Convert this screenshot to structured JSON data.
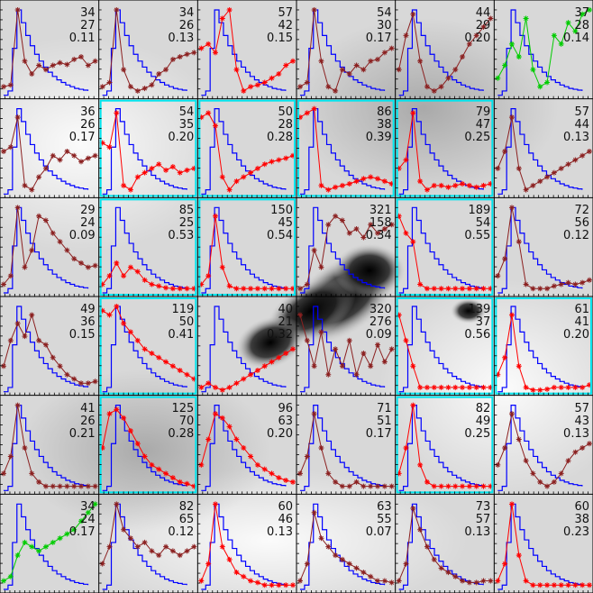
{
  "chart_data": {
    "type": "line",
    "layout": "6x6 grid of small-multiple time-intensity plots over a grayscale background image",
    "colors": {
      "reference_curve": "#0000ff",
      "series_dark": "#8b2020",
      "series_red": "#ff0000",
      "series_green": "#00cc00",
      "highlight_box": "#00e5ee",
      "grid_lines": "#000000"
    },
    "reference_curve": {
      "x": [
        0,
        1,
        2,
        3,
        4,
        5,
        6,
        7,
        8,
        9,
        10,
        11,
        12,
        13,
        14,
        15,
        16,
        17,
        18,
        19
      ],
      "y": [
        0,
        0.05,
        0.55,
        1.0,
        0.85,
        0.7,
        0.58,
        0.48,
        0.4,
        0.33,
        0.27,
        0.22,
        0.18,
        0.15,
        0.12,
        0.1,
        0.08,
        0.07,
        0.06,
        0.05
      ]
    },
    "cells": [
      {
        "row": 0,
        "col": 0,
        "values": [
          "34",
          "27",
          "0.11"
        ],
        "color": "dark",
        "highlight": false,
        "series": [
          0.1,
          0.12,
          1.0,
          0.4,
          0.25,
          0.35,
          0.3,
          0.35,
          0.38,
          0.36,
          0.42,
          0.45,
          0.35,
          0.4
        ]
      },
      {
        "row": 0,
        "col": 1,
        "values": [
          "34",
          "26",
          "0.13"
        ],
        "color": "dark",
        "highlight": false,
        "series": [
          0.1,
          0.15,
          1.0,
          0.3,
          0.1,
          0.05,
          0.08,
          0.12,
          0.25,
          0.3,
          0.42,
          0.45,
          0.48,
          0.5
        ]
      },
      {
        "row": 0,
        "col": 2,
        "values": [
          "57",
          "42",
          "0.15"
        ],
        "color": "red",
        "highlight": false,
        "series": [
          0.55,
          0.6,
          0.5,
          0.9,
          1.0,
          0.3,
          0.05,
          0.1,
          0.12,
          0.15,
          0.2,
          0.25,
          0.35,
          0.4
        ]
      },
      {
        "row": 0,
        "col": 3,
        "values": [
          "54",
          "30",
          "0.17"
        ],
        "color": "dark",
        "highlight": false,
        "series": [
          0.1,
          0.15,
          1.0,
          0.4,
          0.1,
          0.05,
          0.3,
          0.25,
          0.35,
          0.3,
          0.4,
          0.42,
          0.5,
          0.55
        ]
      },
      {
        "row": 0,
        "col": 4,
        "values": [
          "44",
          "29",
          "0.20"
        ],
        "color": "dark",
        "highlight": false,
        "series": [
          0.3,
          0.7,
          0.95,
          0.4,
          0.1,
          0.05,
          0.1,
          0.2,
          0.3,
          0.45,
          0.6,
          0.7,
          0.8,
          0.9
        ]
      },
      {
        "row": 0,
        "col": 5,
        "values": [
          "37",
          "28",
          "0.14"
        ],
        "color": "green",
        "highlight": false,
        "series": [
          0.2,
          0.35,
          0.6,
          0.45,
          0.9,
          0.3,
          0.1,
          0.15,
          0.7,
          0.6,
          0.85,
          0.75,
          0.95,
          1.0
        ]
      },
      {
        "row": 1,
        "col": 0,
        "values": [
          "36",
          "26",
          "0.17"
        ],
        "color": "dark",
        "highlight": false,
        "series": [
          0.5,
          0.55,
          0.9,
          0.1,
          0.05,
          0.2,
          0.3,
          0.45,
          0.4,
          0.5,
          0.45,
          0.38,
          0.42,
          0.45
        ]
      },
      {
        "row": 1,
        "col": 1,
        "values": [
          "54",
          "35",
          "0.20"
        ],
        "color": "red",
        "highlight": true,
        "series": [
          0.6,
          0.55,
          0.95,
          0.1,
          0.05,
          0.2,
          0.25,
          0.3,
          0.35,
          0.28,
          0.32,
          0.25,
          0.28,
          0.3
        ]
      },
      {
        "row": 1,
        "col": 2,
        "values": [
          "50",
          "28",
          "0.28"
        ],
        "color": "red",
        "highlight": true,
        "series": [
          0.9,
          0.95,
          0.8,
          0.2,
          0.05,
          0.15,
          0.2,
          0.25,
          0.3,
          0.35,
          0.38,
          0.4,
          0.42,
          0.45
        ]
      },
      {
        "row": 1,
        "col": 3,
        "values": [
          "86",
          "38",
          "0.39"
        ],
        "color": "red",
        "highlight": true,
        "series": [
          0.9,
          0.95,
          1.0,
          0.1,
          0.05,
          0.08,
          0.1,
          0.12,
          0.15,
          0.18,
          0.2,
          0.18,
          0.15,
          0.12
        ]
      },
      {
        "row": 1,
        "col": 4,
        "values": [
          "79",
          "47",
          "0.25"
        ],
        "color": "red",
        "highlight": true,
        "series": [
          0.3,
          0.4,
          0.95,
          0.15,
          0.05,
          0.1,
          0.1,
          0.08,
          0.1,
          0.12,
          0.1,
          0.08,
          0.1,
          0.12
        ]
      },
      {
        "row": 1,
        "col": 5,
        "values": [
          "57",
          "44",
          "0.13"
        ],
        "color": "dark",
        "highlight": false,
        "series": [
          0.3,
          0.5,
          0.9,
          0.3,
          0.05,
          0.1,
          0.15,
          0.2,
          0.25,
          0.3,
          0.35,
          0.4,
          0.45,
          0.5
        ]
      },
      {
        "row": 2,
        "col": 0,
        "values": [
          "29",
          "24",
          "0.09"
        ],
        "color": "dark",
        "highlight": false,
        "series": [
          0.1,
          0.2,
          1.0,
          0.3,
          0.5,
          0.9,
          0.85,
          0.7,
          0.6,
          0.5,
          0.4,
          0.35,
          0.3,
          0.32
        ]
      },
      {
        "row": 2,
        "col": 1,
        "values": [
          "85",
          "25",
          "0.53"
        ],
        "color": "red",
        "highlight": true,
        "series": [
          0.1,
          0.2,
          0.35,
          0.2,
          0.3,
          0.25,
          0.15,
          0.1,
          0.08,
          0.06,
          0.05,
          0.05,
          0.05,
          0.05
        ]
      },
      {
        "row": 2,
        "col": 2,
        "values": [
          "150",
          "45",
          "0.54"
        ],
        "color": "red",
        "highlight": true,
        "series": [
          0.1,
          0.2,
          0.9,
          0.3,
          0.08,
          0.05,
          0.05,
          0.05,
          0.05,
          0.05,
          0.05,
          0.05,
          0.05,
          0.05
        ]
      },
      {
        "row": 2,
        "col": 3,
        "values": [
          "321",
          "158",
          "0.34"
        ],
        "color": "dark",
        "highlight": false,
        "series": [
          0.05,
          0.1,
          0.5,
          0.3,
          0.8,
          0.9,
          0.85,
          0.7,
          0.75,
          0.65,
          0.8,
          0.7,
          0.75,
          0.8
        ]
      },
      {
        "row": 2,
        "col": 4,
        "values": [
          "189",
          "54",
          "0.55"
        ],
        "color": "red",
        "highlight": true,
        "series": [
          0.9,
          0.7,
          0.6,
          0.1,
          0.05,
          0.05,
          0.05,
          0.05,
          0.05,
          0.05,
          0.05,
          0.05,
          0.05,
          0.05
        ]
      },
      {
        "row": 2,
        "col": 5,
        "values": [
          "72",
          "56",
          "0.12"
        ],
        "color": "dark",
        "highlight": false,
        "series": [
          0.2,
          0.4,
          1.0,
          0.6,
          0.1,
          0.05,
          0.05,
          0.05,
          0.08,
          0.1,
          0.12,
          0.1,
          0.12,
          0.15
        ]
      },
      {
        "row": 3,
        "col": 0,
        "values": [
          "49",
          "36",
          "0.15"
        ],
        "color": "dark",
        "highlight": false,
        "series": [
          0.3,
          0.6,
          0.8,
          0.65,
          0.9,
          0.6,
          0.55,
          0.4,
          0.3,
          0.2,
          0.15,
          0.1,
          0.1,
          0.12
        ]
      },
      {
        "row": 3,
        "col": 1,
        "values": [
          "119",
          "50",
          "0.41"
        ],
        "color": "red",
        "highlight": true,
        "series": [
          0.95,
          0.9,
          1.0,
          0.8,
          0.7,
          0.6,
          0.5,
          0.45,
          0.4,
          0.35,
          0.3,
          0.25,
          0.2,
          0.15
        ]
      },
      {
        "row": 3,
        "col": 2,
        "values": [
          "40",
          "21",
          "0.32"
        ],
        "color": "red",
        "highlight": false,
        "series": [
          0.05,
          0.1,
          0.05,
          0.02,
          0.05,
          0.1,
          0.15,
          0.2,
          0.25,
          0.3,
          0.35,
          0.4,
          0.45,
          0.5
        ]
      },
      {
        "row": 3,
        "col": 3,
        "values": [
          "320",
          "276",
          "0.09"
        ],
        "color": "dark",
        "highlight": false,
        "series": [
          0.9,
          0.6,
          0.3,
          0.7,
          0.2,
          0.5,
          0.3,
          0.6,
          0.2,
          0.45,
          0.3,
          0.55,
          0.35,
          0.5
        ]
      },
      {
        "row": 3,
        "col": 4,
        "values": [
          "139",
          "37",
          "0.56"
        ],
        "color": "red",
        "highlight": true,
        "series": [
          0.9,
          0.6,
          0.3,
          0.05,
          0.05,
          0.05,
          0.05,
          0.05,
          0.05,
          0.05,
          0.05,
          0.05,
          0.05,
          0.05
        ]
      },
      {
        "row": 3,
        "col": 5,
        "values": [
          "61",
          "41",
          "0.20"
        ],
        "color": "red",
        "highlight": true,
        "series": [
          0.2,
          0.4,
          0.9,
          0.3,
          0.05,
          0.02,
          0.02,
          0.03,
          0.05,
          0.05,
          0.05,
          0.05,
          0.05,
          0.08
        ]
      },
      {
        "row": 4,
        "col": 0,
        "values": [
          "41",
          "26",
          "0.21"
        ],
        "color": "dark",
        "highlight": false,
        "series": [
          0.2,
          0.4,
          1.0,
          0.5,
          0.2,
          0.1,
          0.05,
          0.05,
          0.05,
          0.05,
          0.05,
          0.05,
          0.05,
          0.05
        ]
      },
      {
        "row": 4,
        "col": 1,
        "values": [
          "125",
          "70",
          "0.28"
        ],
        "color": "red",
        "highlight": true,
        "series": [
          0.5,
          0.9,
          0.95,
          0.85,
          0.7,
          0.55,
          0.4,
          0.3,
          0.25,
          0.2,
          0.15,
          0.1,
          0.08,
          0.05
        ]
      },
      {
        "row": 4,
        "col": 2,
        "values": [
          "96",
          "63",
          "0.20"
        ],
        "color": "red",
        "highlight": false,
        "series": [
          0.3,
          0.6,
          0.9,
          0.85,
          0.75,
          0.6,
          0.5,
          0.4,
          0.3,
          0.25,
          0.2,
          0.15,
          0.12,
          0.1
        ]
      },
      {
        "row": 4,
        "col": 3,
        "values": [
          "71",
          "51",
          "0.17"
        ],
        "color": "dark",
        "highlight": false,
        "series": [
          0.2,
          0.4,
          0.9,
          0.5,
          0.2,
          0.1,
          0.05,
          0.05,
          0.1,
          0.05,
          0.05,
          0.05,
          0.05,
          0.05
        ]
      },
      {
        "row": 4,
        "col": 4,
        "values": [
          "82",
          "49",
          "0.25"
        ],
        "color": "red",
        "highlight": true,
        "series": [
          0.2,
          0.5,
          1.0,
          0.3,
          0.1,
          0.05,
          0.05,
          0.05,
          0.05,
          0.05,
          0.05,
          0.05,
          0.05,
          0.05
        ]
      },
      {
        "row": 4,
        "col": 5,
        "values": [
          "57",
          "43",
          "0.13"
        ],
        "color": "dark",
        "highlight": false,
        "series": [
          0.3,
          0.5,
          0.9,
          0.6,
          0.35,
          0.2,
          0.1,
          0.05,
          0.1,
          0.2,
          0.35,
          0.45,
          0.5,
          0.55
        ]
      },
      {
        "row": 5,
        "col": 0,
        "values": [
          "34",
          "24",
          "0.17"
        ],
        "color": "green",
        "highlight": false,
        "series": [
          0.1,
          0.15,
          0.4,
          0.55,
          0.5,
          0.45,
          0.5,
          0.55,
          0.6,
          0.65,
          0.7,
          0.8,
          0.9,
          1.0
        ]
      },
      {
        "row": 5,
        "col": 1,
        "values": [
          "82",
          "65",
          "0.12"
        ],
        "color": "dark",
        "highlight": false,
        "series": [
          0.3,
          0.5,
          1.0,
          0.7,
          0.6,
          0.5,
          0.55,
          0.45,
          0.4,
          0.5,
          0.45,
          0.4,
          0.45,
          0.5
        ]
      },
      {
        "row": 5,
        "col": 2,
        "values": [
          "60",
          "46",
          "0.13"
        ],
        "color": "red",
        "highlight": false,
        "series": [
          0.1,
          0.3,
          1.0,
          0.5,
          0.35,
          0.2,
          0.15,
          0.1,
          0.08,
          0.05,
          0.05,
          0.05,
          0.05,
          0.05
        ]
      },
      {
        "row": 5,
        "col": 3,
        "values": [
          "63",
          "55",
          "0.07"
        ],
        "color": "dark",
        "highlight": false,
        "series": [
          0.1,
          0.3,
          0.9,
          0.6,
          0.5,
          0.4,
          0.35,
          0.3,
          0.25,
          0.2,
          0.15,
          0.1,
          0.1,
          0.08
        ]
      },
      {
        "row": 5,
        "col": 4,
        "values": [
          "73",
          "57",
          "0.13"
        ],
        "color": "dark",
        "highlight": false,
        "series": [
          0.1,
          0.3,
          0.95,
          0.7,
          0.5,
          0.35,
          0.25,
          0.2,
          0.15,
          0.1,
          0.08,
          0.08,
          0.1,
          0.1
        ]
      },
      {
        "row": 5,
        "col": 5,
        "values": [
          "60",
          "38",
          "0.23"
        ],
        "color": "red",
        "highlight": false,
        "series": [
          0.1,
          0.3,
          1.0,
          0.4,
          0.1,
          0.05,
          0.05,
          0.05,
          0.05,
          0.05,
          0.05,
          0.05,
          0.05,
          0.05
        ]
      }
    ]
  }
}
